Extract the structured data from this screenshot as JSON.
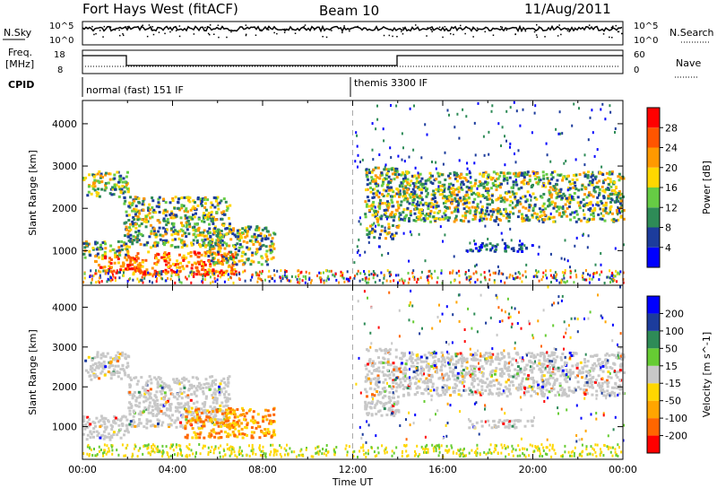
{
  "header": {
    "site": "Fort Hays West (fitACF)",
    "beam": "Beam 10",
    "date": "11/Aug/2011"
  },
  "side_labels": {
    "nsky": "N.Sky",
    "freq_line1": "Freq.",
    "freq_line2": "[MHz]",
    "cpid": "CPID",
    "nsearch": "N.Search",
    "nave": "Nave"
  },
  "strip_ticks": {
    "noise_left": [
      "10^5",
      "10^0"
    ],
    "noise_right": [
      "10^5",
      "10^0"
    ],
    "freq_left": [
      "18",
      "8"
    ],
    "nave_right": [
      "60",
      "0"
    ]
  },
  "cpid_labels": [
    "normal (fast) 151 IF",
    "themis 3300 IF"
  ],
  "colors": {
    "power": [
      "#0000ff",
      "#1c3c9c",
      "#2e8b57",
      "#66cc44",
      "#ffd700",
      "#ff9900",
      "#ff5500",
      "#ff0000"
    ],
    "velocity": [
      "#ff0000",
      "#ff6600",
      "#ffa500",
      "#ffd700",
      "#c8c8c8",
      "#66cc33",
      "#2e8b57",
      "#1c3c9c",
      "#0000ff"
    ]
  },
  "chart_data": [
    {
      "type": "heatmap",
      "panel": "power",
      "ylabel": "Slant Range [km]",
      "xlabel": "",
      "ylim": [
        180,
        4550
      ],
      "xlim": [
        0,
        24
      ],
      "yticks": [
        1000,
        2000,
        3000,
        4000
      ],
      "colorbar": {
        "label": "Power [dB]",
        "range": [
          0,
          32
        ],
        "ticks": [
          4,
          8,
          12,
          16,
          20,
          24,
          28
        ]
      },
      "regions": [
        {
          "t0": 0.0,
          "t1": 2.0,
          "r0": 2300,
          "r1": 2900,
          "level": "mid"
        },
        {
          "t0": 0.0,
          "t1": 2.0,
          "r0": 850,
          "r1": 1250,
          "level": "mid"
        },
        {
          "t0": 0.5,
          "t1": 2.5,
          "r0": 500,
          "r1": 900,
          "level": "high"
        },
        {
          "t0": 1.8,
          "t1": 6.5,
          "r0": 1100,
          "r1": 2300,
          "level": "mid"
        },
        {
          "t0": 2.0,
          "t1": 6.8,
          "r0": 450,
          "r1": 1000,
          "level": "high"
        },
        {
          "t0": 5.5,
          "t1": 8.5,
          "r0": 700,
          "r1": 1600,
          "level": "mid"
        },
        {
          "t0": 12.5,
          "t1": 14.0,
          "r0": 1300,
          "r1": 3000,
          "level": "mid"
        },
        {
          "t0": 14.0,
          "t1": 24.0,
          "r0": 1700,
          "r1": 2900,
          "level": "mid"
        },
        {
          "t0": 17.0,
          "t1": 20.0,
          "r0": 1000,
          "r1": 1200,
          "level": "low"
        }
      ]
    },
    {
      "type": "heatmap",
      "panel": "velocity",
      "ylabel": "Slant Range [km]",
      "xlabel": "Time UT",
      "ylim": [
        180,
        4550
      ],
      "xlim": [
        0,
        24
      ],
      "yticks": [
        1000,
        2000,
        3000,
        4000
      ],
      "xticks": [
        "00:00",
        "04:00",
        "08:00",
        "12:00",
        "16:00",
        "20:00",
        "00:00"
      ],
      "colorbar": {
        "label": "Velocity [m s^-1]",
        "ticks": [
          "200",
          "100",
          "50",
          "15",
          "-15",
          "-50",
          "-100",
          "-200"
        ]
      },
      "regions": [
        {
          "t0": 0.0,
          "t1": 2.0,
          "r0": 2200,
          "r1": 2900,
          "level": "ground"
        },
        {
          "t0": 0.0,
          "t1": 2.0,
          "r0": 700,
          "r1": 1300,
          "level": "ground"
        },
        {
          "t0": 2.0,
          "t1": 6.5,
          "r0": 1000,
          "r1": 2300,
          "level": "ground"
        },
        {
          "t0": 4.5,
          "t1": 8.5,
          "r0": 750,
          "r1": 1500,
          "level": "neg"
        },
        {
          "t0": 12.5,
          "t1": 14.0,
          "r0": 1300,
          "r1": 3000,
          "level": "ground"
        },
        {
          "t0": 14.0,
          "t1": 24.0,
          "r0": 1800,
          "r1": 2900,
          "level": "ground"
        },
        {
          "t0": 17.0,
          "t1": 20.0,
          "r0": 1000,
          "r1": 1200,
          "level": "ground"
        }
      ]
    }
  ]
}
